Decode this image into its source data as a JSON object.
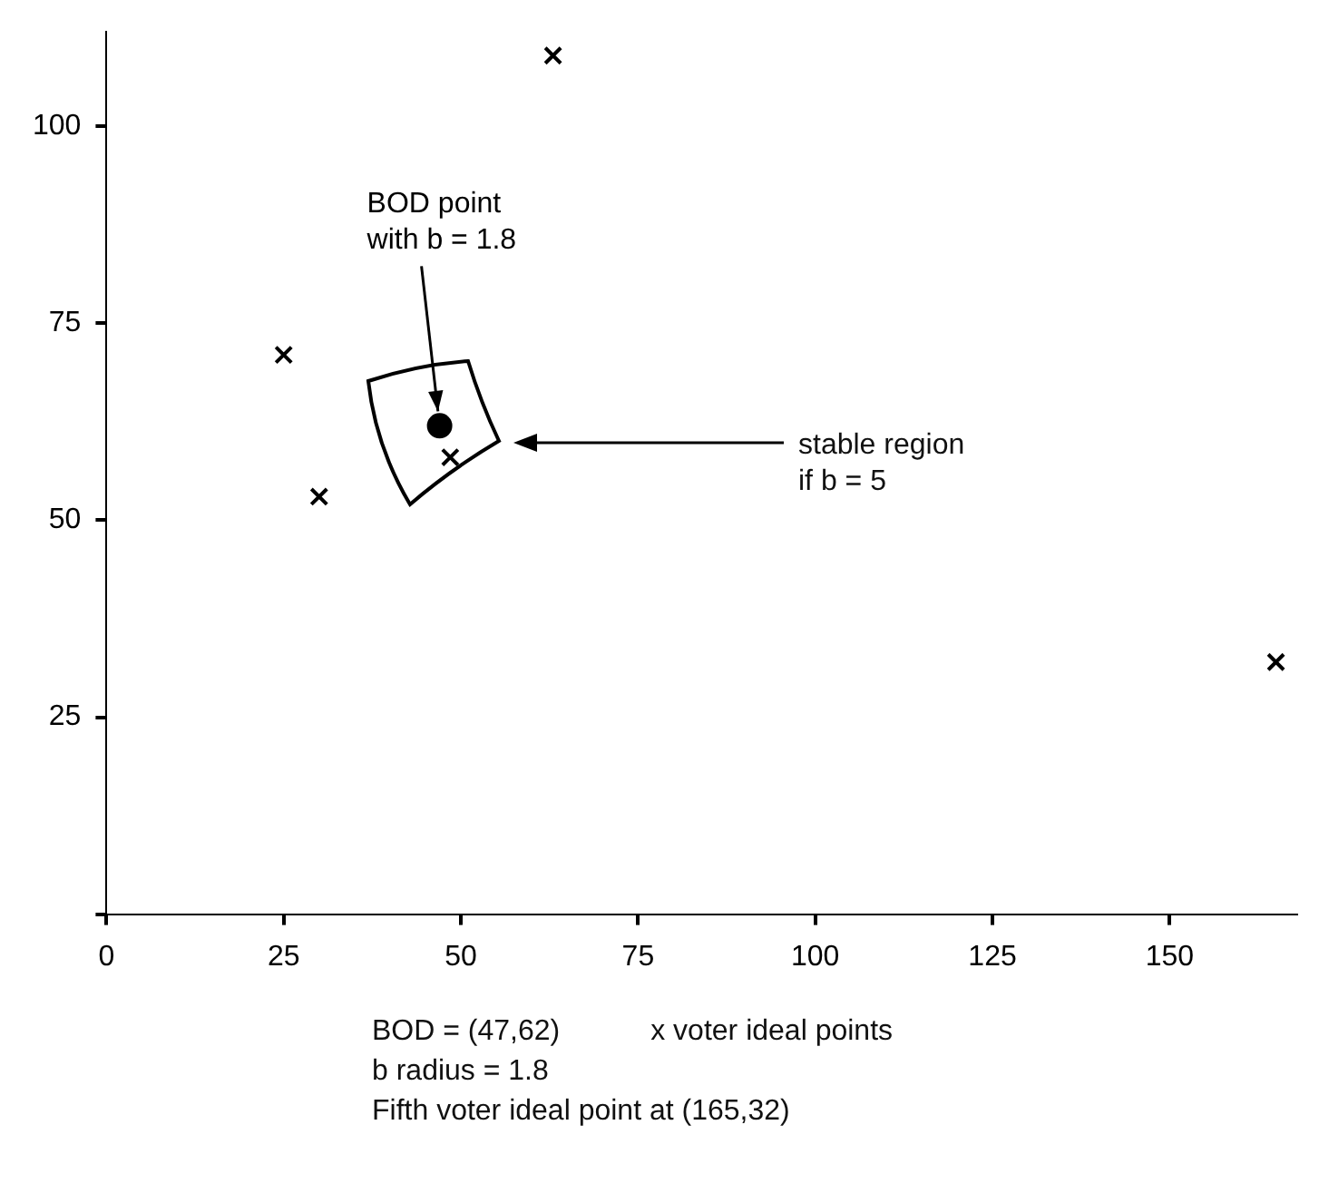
{
  "chart_data": {
    "type": "scatter",
    "legend": false,
    "grid": false,
    "xlim": [
      0,
      168
    ],
    "ylim": [
      0,
      112
    ],
    "xticks": [
      0,
      25,
      50,
      75,
      100,
      125,
      150
    ],
    "yticks": [
      {
        "value": 0,
        "label": null
      },
      25,
      50,
      75,
      100
    ],
    "series": [
      {
        "type": "scatter",
        "marker": "cross",
        "color": "#000000",
        "x": [
          63,
          25,
          30,
          48.5,
          165
        ],
        "values": [
          109,
          71,
          53,
          58,
          32
        ]
      },
      {
        "type": "scatter",
        "marker": "circle",
        "color": "#000000",
        "x": [
          47
        ],
        "values": [
          62
        ]
      }
    ],
    "annotations": [
      {
        "text": "BOD point\nwith b = 1.8",
        "x": 47,
        "y": 62
      },
      "stable region\nif b = 5",
      "BOD = (47,62)",
      "x voter ideal points",
      "b radius = 1.8",
      "Fifth voter ideal point at (165,32)"
    ]
  }
}
